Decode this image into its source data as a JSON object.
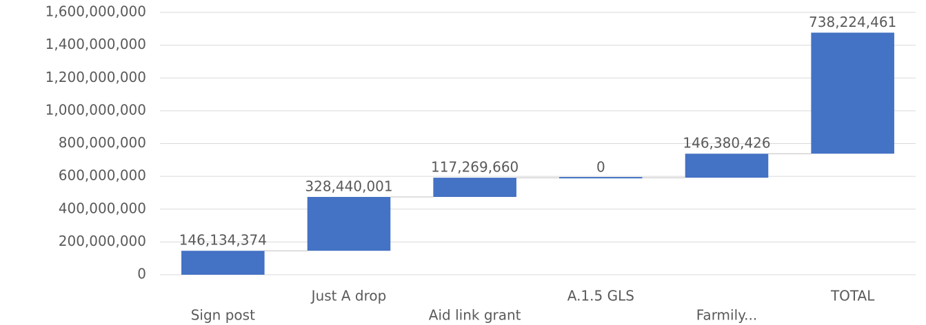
{
  "chart_data": {
    "type": "waterfall",
    "categories": [
      "Sign post",
      "Just A drop",
      "Aid link grant",
      "A.1.5 GLS",
      "Farmily...",
      "TOTAL"
    ],
    "values": [
      146134374,
      328440001,
      117269660,
      0,
      146380426,
      738224461
    ],
    "value_labels": [
      "146,134,374",
      "328,440,001",
      "117,269,660",
      "0",
      "146,380,426",
      "738,224,461"
    ],
    "color": "#4472c4",
    "ylim": [
      0,
      1600000000
    ],
    "yticks": [
      {
        "value": 0,
        "label": "0"
      },
      {
        "value": 200000000,
        "label": "200,000,000"
      },
      {
        "value": 400000000,
        "label": "400,000,000"
      },
      {
        "value": 600000000,
        "label": "600,000,000"
      },
      {
        "value": 800000000,
        "label": "800,000,000"
      },
      {
        "value": 1000000000,
        "label": "1,000,000,000"
      },
      {
        "value": 1200000000,
        "label": "1,200,000,000"
      },
      {
        "value": 1400000000,
        "label": "1,400,000,000"
      },
      {
        "value": 1600000000,
        "label": "1,600,000,000"
      }
    ],
    "grid": true
  }
}
